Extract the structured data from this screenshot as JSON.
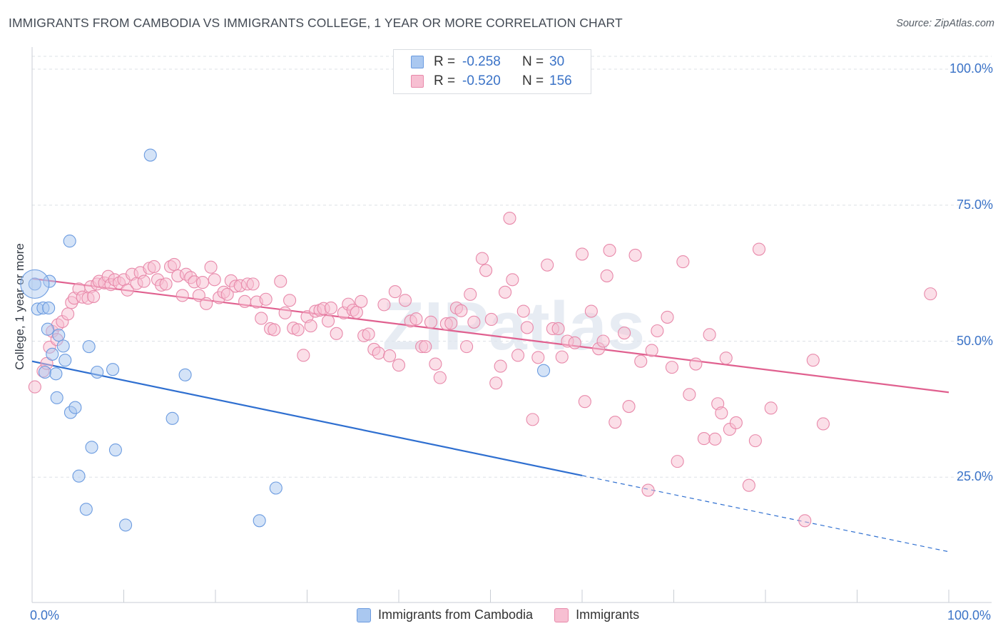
{
  "title": "IMMIGRANTS FROM CAMBODIA VS IMMIGRANTS COLLEGE, 1 YEAR OR MORE CORRELATION CHART",
  "source": "Source: ZipAtlas.com",
  "watermark": "ZIPatlas",
  "legend_top": {
    "rows": [
      {
        "r_label": "R =",
        "r_value": "-0.258",
        "n_label": "N =",
        "n_value": "30",
        "color": "#aac8f0",
        "stroke": "#6b9be0"
      },
      {
        "r_label": "R =",
        "r_value": "-0.520",
        "n_label": "N =",
        "n_value": "156",
        "color": "#f7bfd2",
        "stroke": "#e889aa"
      }
    ]
  },
  "legend_bottom": [
    {
      "label": "Immigrants from Cambodia",
      "color": "#aac8f0",
      "stroke": "#6b9be0"
    },
    {
      "label": "Immigrants",
      "color": "#f7bfd2",
      "stroke": "#e889aa"
    }
  ],
  "x_tick_labels": {
    "min": "0.0%",
    "max": "100.0%"
  },
  "y_tick_labels": [
    "100.0%",
    "75.0%",
    "50.0%",
    "25.0%"
  ],
  "chart_data": {
    "type": "scatter",
    "title": "IMMIGRANTS FROM CAMBODIA VS IMMIGRANTS COLLEGE, 1 YEAR OR MORE CORRELATION CHART",
    "xlabel": "",
    "ylabel": "College, 1 year or more",
    "xlim": [
      0,
      100
    ],
    "ylim": [
      0,
      100
    ],
    "y_ticks": [
      25,
      50,
      75,
      100
    ],
    "grid": "horizontal dashed",
    "legend": "top-center and bottom",
    "series": [
      {
        "name": "Immigrants from Cambodia",
        "color": "#aac8f0",
        "stroke": "#6b9be0",
        "trend": {
          "x0": 0,
          "y0": 46.3,
          "x1": 60,
          "y1": 25.3,
          "dashed_to_x": 100,
          "dashed_to_y": 11.3,
          "color": "#2f6fd0"
        },
        "points": [
          [
            0.3,
            60.5
          ],
          [
            0.6,
            55.9
          ],
          [
            1.2,
            56.1
          ],
          [
            1.7,
            52.2
          ],
          [
            1.8,
            56.1
          ],
          [
            1.9,
            61.0
          ],
          [
            1.4,
            44.3
          ],
          [
            2.2,
            47.6
          ],
          [
            2.9,
            51.1
          ],
          [
            3.4,
            49.1
          ],
          [
            3.6,
            46.5
          ],
          [
            2.6,
            44.0
          ],
          [
            2.7,
            39.6
          ],
          [
            4.1,
            68.4
          ],
          [
            4.2,
            36.9
          ],
          [
            4.7,
            37.8
          ],
          [
            5.1,
            25.2
          ],
          [
            5.9,
            19.1
          ],
          [
            6.2,
            49.0
          ],
          [
            6.5,
            30.5
          ],
          [
            7.1,
            44.3
          ],
          [
            8.8,
            44.8
          ],
          [
            9.1,
            30.0
          ],
          [
            10.2,
            16.2
          ],
          [
            12.9,
            84.2
          ],
          [
            15.3,
            35.8
          ],
          [
            16.7,
            43.8
          ],
          [
            24.8,
            17.0
          ],
          [
            26.6,
            23.0
          ],
          [
            55.8,
            44.6
          ]
        ]
      },
      {
        "name": "Immigrants",
        "color": "#f7bfd2",
        "stroke": "#e889aa",
        "trend": {
          "x0": 0,
          "y0": 61.5,
          "x1": 100,
          "y1": 40.6,
          "color": "#e0608f"
        },
        "points": [
          [
            0.3,
            41.6
          ],
          [
            1.2,
            44.5
          ],
          [
            1.6,
            45.9
          ],
          [
            1.9,
            48.9
          ],
          [
            2.2,
            51.8
          ],
          [
            2.7,
            50.3
          ],
          [
            2.8,
            53.0
          ],
          [
            3.3,
            53.6
          ],
          [
            3.9,
            55.0
          ],
          [
            4.3,
            57.1
          ],
          [
            4.6,
            57.9
          ],
          [
            5.1,
            59.6
          ],
          [
            5.5,
            58.1
          ],
          [
            6.1,
            57.9
          ],
          [
            6.4,
            60.0
          ],
          [
            6.7,
            58.2
          ],
          [
            7.1,
            60.5
          ],
          [
            7.3,
            61.0
          ],
          [
            7.9,
            60.7
          ],
          [
            8.3,
            61.9
          ],
          [
            8.6,
            60.4
          ],
          [
            9.0,
            61.3
          ],
          [
            9.5,
            60.7
          ],
          [
            10.0,
            61.3
          ],
          [
            10.4,
            59.4
          ],
          [
            10.9,
            62.3
          ],
          [
            11.4,
            60.6
          ],
          [
            11.8,
            62.6
          ],
          [
            12.2,
            61.0
          ],
          [
            12.8,
            63.4
          ],
          [
            13.3,
            63.7
          ],
          [
            13.7,
            61.3
          ],
          [
            14.1,
            60.3
          ],
          [
            14.6,
            60.5
          ],
          [
            15.1,
            63.7
          ],
          [
            15.5,
            64.1
          ],
          [
            15.9,
            62.0
          ],
          [
            16.4,
            58.4
          ],
          [
            16.8,
            62.3
          ],
          [
            17.3,
            61.7
          ],
          [
            17.7,
            60.9
          ],
          [
            18.2,
            58.4
          ],
          [
            18.6,
            60.8
          ],
          [
            19.0,
            56.9
          ],
          [
            19.5,
            63.6
          ],
          [
            19.9,
            61.3
          ],
          [
            20.4,
            58.0
          ],
          [
            20.9,
            59.0
          ],
          [
            21.3,
            58.6
          ],
          [
            21.7,
            61.1
          ],
          [
            22.2,
            60.1
          ],
          [
            22.7,
            60.2
          ],
          [
            23.2,
            57.3
          ],
          [
            23.5,
            60.5
          ],
          [
            24.1,
            60.5
          ],
          [
            24.5,
            57.2
          ],
          [
            25.0,
            54.2
          ],
          [
            25.5,
            57.7
          ],
          [
            26.0,
            52.3
          ],
          [
            26.4,
            52.1
          ],
          [
            27.1,
            61.0
          ],
          [
            27.6,
            55.2
          ],
          [
            28.1,
            57.5
          ],
          [
            28.5,
            52.4
          ],
          [
            29.0,
            52.1
          ],
          [
            29.6,
            47.4
          ],
          [
            30.0,
            54.5
          ],
          [
            30.4,
            52.8
          ],
          [
            30.9,
            55.5
          ],
          [
            31.4,
            55.7
          ],
          [
            31.8,
            56.0
          ],
          [
            32.3,
            53.7
          ],
          [
            32.6,
            56.1
          ],
          [
            33.2,
            51.4
          ],
          [
            34.0,
            55.2
          ],
          [
            34.5,
            56.8
          ],
          [
            35.0,
            55.7
          ],
          [
            35.4,
            55.3
          ],
          [
            35.9,
            57.3
          ],
          [
            36.2,
            51.0
          ],
          [
            36.7,
            51.3
          ],
          [
            37.3,
            48.5
          ],
          [
            37.8,
            47.8
          ],
          [
            38.4,
            56.7
          ],
          [
            39.0,
            47.3
          ],
          [
            39.6,
            59.1
          ],
          [
            40.0,
            45.6
          ],
          [
            40.7,
            57.5
          ],
          [
            41.3,
            53.7
          ],
          [
            41.9,
            54.1
          ],
          [
            42.5,
            49.0
          ],
          [
            42.9,
            49.0
          ],
          [
            43.5,
            53.5
          ],
          [
            44.0,
            45.8
          ],
          [
            44.5,
            43.3
          ],
          [
            45.2,
            53.2
          ],
          [
            45.7,
            53.3
          ],
          [
            46.3,
            56.1
          ],
          [
            46.8,
            55.6
          ],
          [
            47.4,
            49.0
          ],
          [
            47.8,
            58.6
          ],
          [
            48.2,
            53.5
          ],
          [
            49.1,
            65.2
          ],
          [
            49.5,
            63.0
          ],
          [
            50.1,
            54.0
          ],
          [
            50.6,
            42.3
          ],
          [
            51.1,
            45.4
          ],
          [
            51.6,
            59.0
          ],
          [
            52.1,
            72.6
          ],
          [
            52.4,
            61.3
          ],
          [
            53.0,
            47.4
          ],
          [
            53.6,
            55.5
          ],
          [
            54.0,
            52.5
          ],
          [
            54.6,
            35.6
          ],
          [
            55.2,
            47.0
          ],
          [
            56.2,
            64.0
          ],
          [
            56.8,
            52.3
          ],
          [
            57.4,
            52.3
          ],
          [
            57.8,
            47.1
          ],
          [
            58.4,
            50.0
          ],
          [
            59.2,
            49.7
          ],
          [
            60.0,
            66.0
          ],
          [
            60.3,
            38.9
          ],
          [
            61.0,
            55.5
          ],
          [
            61.8,
            48.6
          ],
          [
            62.3,
            50.0
          ],
          [
            62.7,
            62.0
          ],
          [
            63.0,
            66.7
          ],
          [
            63.6,
            35.1
          ],
          [
            64.6,
            51.5
          ],
          [
            65.1,
            38.0
          ],
          [
            65.8,
            65.8
          ],
          [
            66.4,
            46.3
          ],
          [
            67.2,
            22.6
          ],
          [
            67.6,
            48.3
          ],
          [
            68.2,
            51.9
          ],
          [
            69.3,
            54.4
          ],
          [
            69.8,
            45.2
          ],
          [
            70.4,
            27.9
          ],
          [
            71.0,
            64.6
          ],
          [
            71.7,
            40.2
          ],
          [
            72.4,
            45.8
          ],
          [
            73.3,
            32.1
          ],
          [
            73.9,
            51.2
          ],
          [
            74.5,
            32.0
          ],
          [
            74.8,
            38.5
          ],
          [
            75.2,
            36.8
          ],
          [
            75.7,
            46.9
          ],
          [
            76.1,
            33.8
          ],
          [
            76.8,
            35.0
          ],
          [
            78.2,
            23.5
          ],
          [
            78.9,
            31.7
          ],
          [
            79.3,
            66.9
          ],
          [
            80.6,
            37.7
          ],
          [
            84.3,
            17.0
          ],
          [
            85.2,
            46.5
          ],
          [
            86.3,
            34.8
          ],
          [
            98.0,
            58.7
          ]
        ]
      }
    ]
  }
}
